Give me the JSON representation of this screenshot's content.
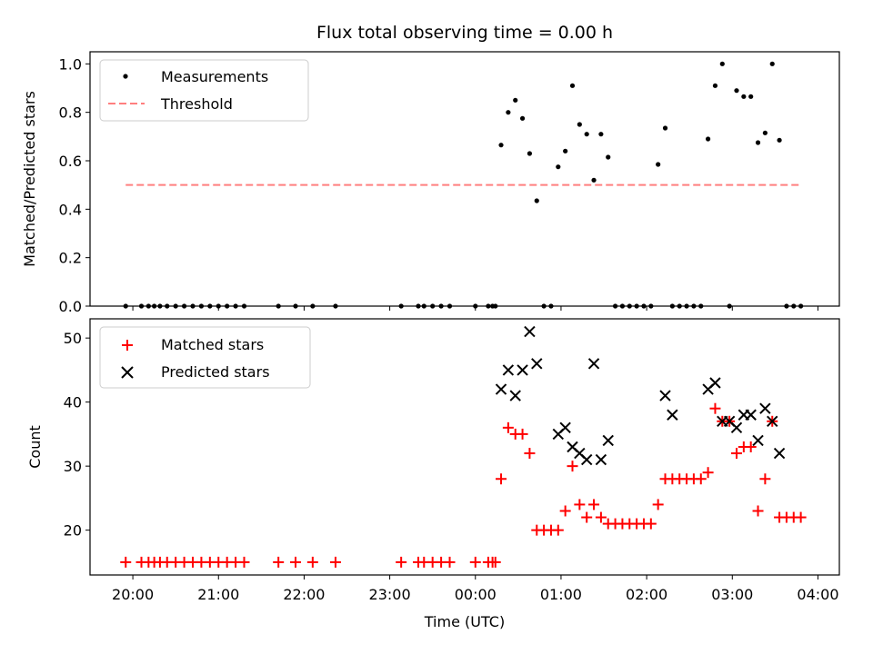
{
  "chart_data": [
    {
      "type": "scatter",
      "title": "Flux total observing time = 0.00 h",
      "xlabel": "",
      "ylabel": "Matched/Predicted stars",
      "xlim": [
        "19:30",
        "04:15"
      ],
      "ylim": [
        0,
        1.05
      ],
      "yticks": [
        "0.0",
        "0.2",
        "0.4",
        "0.6",
        "0.8",
        "1.0"
      ],
      "legend_position": "top-left",
      "series": [
        {
          "name": "Measurements",
          "marker": "dot",
          "color": "#000000",
          "x": [
            "19:55",
            "20:06",
            "20:11",
            "20:15",
            "20:19",
            "20:24",
            "20:30",
            "20:36",
            "20:42",
            "20:48",
            "20:54",
            "21:00",
            "21:06",
            "21:12",
            "21:18",
            "21:42",
            "21:54",
            "22:06",
            "22:22",
            "23:08",
            "23:20",
            "23:24",
            "23:30",
            "23:36",
            "23:42",
            "00:00",
            "00:09",
            "00:12",
            "00:14",
            "00:18",
            "00:23",
            "00:28",
            "00:33",
            "00:38",
            "00:43",
            "00:48",
            "00:53",
            "00:58",
            "01:03",
            "01:08",
            "01:13",
            "01:18",
            "01:23",
            "01:28",
            "01:33",
            "01:38",
            "01:43",
            "01:48",
            "01:53",
            "01:58",
            "02:03",
            "02:08",
            "02:13",
            "02:18",
            "02:23",
            "02:28",
            "02:33",
            "02:38",
            "02:43",
            "02:48",
            "02:53",
            "02:58",
            "03:03",
            "03:08",
            "03:13",
            "03:18",
            "03:23",
            "03:28",
            "03:33",
            "03:38",
            "03:43",
            "03:48"
          ],
          "y": [
            0,
            0,
            0,
            0,
            0,
            0,
            0,
            0,
            0,
            0,
            0,
            0,
            0,
            0,
            0,
            0,
            0,
            0,
            0,
            0,
            0,
            0,
            0,
            0,
            0,
            0,
            0,
            0,
            0,
            0.665,
            0.8,
            0.85,
            0.775,
            0.63,
            0.435,
            0,
            0,
            0.575,
            0.64,
            0.91,
            0.75,
            0.71,
            0.52,
            0.71,
            0.615,
            0,
            0,
            0,
            0,
            0,
            0,
            0.585,
            0.735,
            0,
            0,
            0,
            0,
            0,
            0.69,
            0.91,
            1.0,
            0,
            0.89,
            0.865,
            0.865,
            0.675,
            0.715,
            1.0,
            0.685,
            0,
            0,
            0
          ]
        },
        {
          "name": "Threshold",
          "marker": "dashed-line",
          "color": "#ff7f7f",
          "x": [
            "19:55",
            "03:48"
          ],
          "y": [
            0.5,
            0.5
          ]
        }
      ]
    },
    {
      "type": "scatter",
      "title": "",
      "xlabel": "Time (UTC)",
      "ylabel": "Count",
      "xlim": [
        "19:30",
        "04:15"
      ],
      "ylim": [
        13,
        53
      ],
      "yticks": [
        "20",
        "30",
        "40",
        "50"
      ],
      "xticks": [
        "20:00",
        "21:00",
        "22:00",
        "23:00",
        "00:00",
        "01:00",
        "02:00",
        "03:00",
        "04:00"
      ],
      "legend_position": "top-left",
      "series": [
        {
          "name": "Matched stars",
          "marker": "plus",
          "color": "#ff0000",
          "x": [
            "19:55",
            "20:06",
            "20:11",
            "20:15",
            "20:19",
            "20:24",
            "20:30",
            "20:36",
            "20:42",
            "20:48",
            "20:54",
            "21:00",
            "21:06",
            "21:12",
            "21:18",
            "21:42",
            "21:54",
            "22:06",
            "22:22",
            "23:08",
            "23:20",
            "23:24",
            "23:30",
            "23:36",
            "23:42",
            "00:00",
            "00:09",
            "00:12",
            "00:14",
            "00:18",
            "00:23",
            "00:28",
            "00:33",
            "00:38",
            "00:43",
            "00:48",
            "00:53",
            "00:58",
            "01:03",
            "01:08",
            "01:13",
            "01:18",
            "01:23",
            "01:28",
            "01:33",
            "01:38",
            "01:43",
            "01:48",
            "01:53",
            "01:58",
            "02:03",
            "02:08",
            "02:13",
            "02:18",
            "02:23",
            "02:28",
            "02:33",
            "02:38",
            "02:43",
            "02:48",
            "02:53",
            "02:58",
            "03:03",
            "03:08",
            "03:13",
            "03:18",
            "03:23",
            "03:28",
            "03:33",
            "03:38",
            "03:43",
            "03:48"
          ],
          "y": [
            15,
            15,
            15,
            15,
            15,
            15,
            15,
            15,
            15,
            15,
            15,
            15,
            15,
            15,
            15,
            15,
            15,
            15,
            15,
            15,
            15,
            15,
            15,
            15,
            15,
            15,
            15,
            15,
            15,
            28,
            36,
            35,
            35,
            32,
            20,
            20,
            20,
            20,
            23,
            30,
            24,
            22,
            24,
            22,
            21,
            21,
            21,
            21,
            21,
            21,
            21,
            24,
            28,
            28,
            28,
            28,
            28,
            28,
            29,
            39,
            37,
            37,
            32,
            33,
            33,
            23,
            28,
            37,
            22,
            22,
            22,
            22
          ]
        },
        {
          "name": "Predicted stars",
          "marker": "x",
          "color": "#000000",
          "x": [
            "00:18",
            "00:23",
            "00:28",
            "00:33",
            "00:38",
            "00:43",
            "00:58",
            "01:03",
            "01:08",
            "01:13",
            "01:18",
            "01:23",
            "01:28",
            "01:33",
            "02:13",
            "02:18",
            "02:43",
            "02:48",
            "02:53",
            "02:58",
            "03:03",
            "03:08",
            "03:13",
            "03:18",
            "03:23",
            "03:28",
            "03:33"
          ],
          "y": [
            42,
            45,
            41,
            45,
            51,
            46,
            35,
            36,
            33,
            32,
            31,
            46,
            31,
            34,
            41,
            38,
            42,
            43,
            37,
            37,
            36,
            38,
            38,
            34,
            39,
            37,
            32
          ]
        }
      ]
    }
  ]
}
